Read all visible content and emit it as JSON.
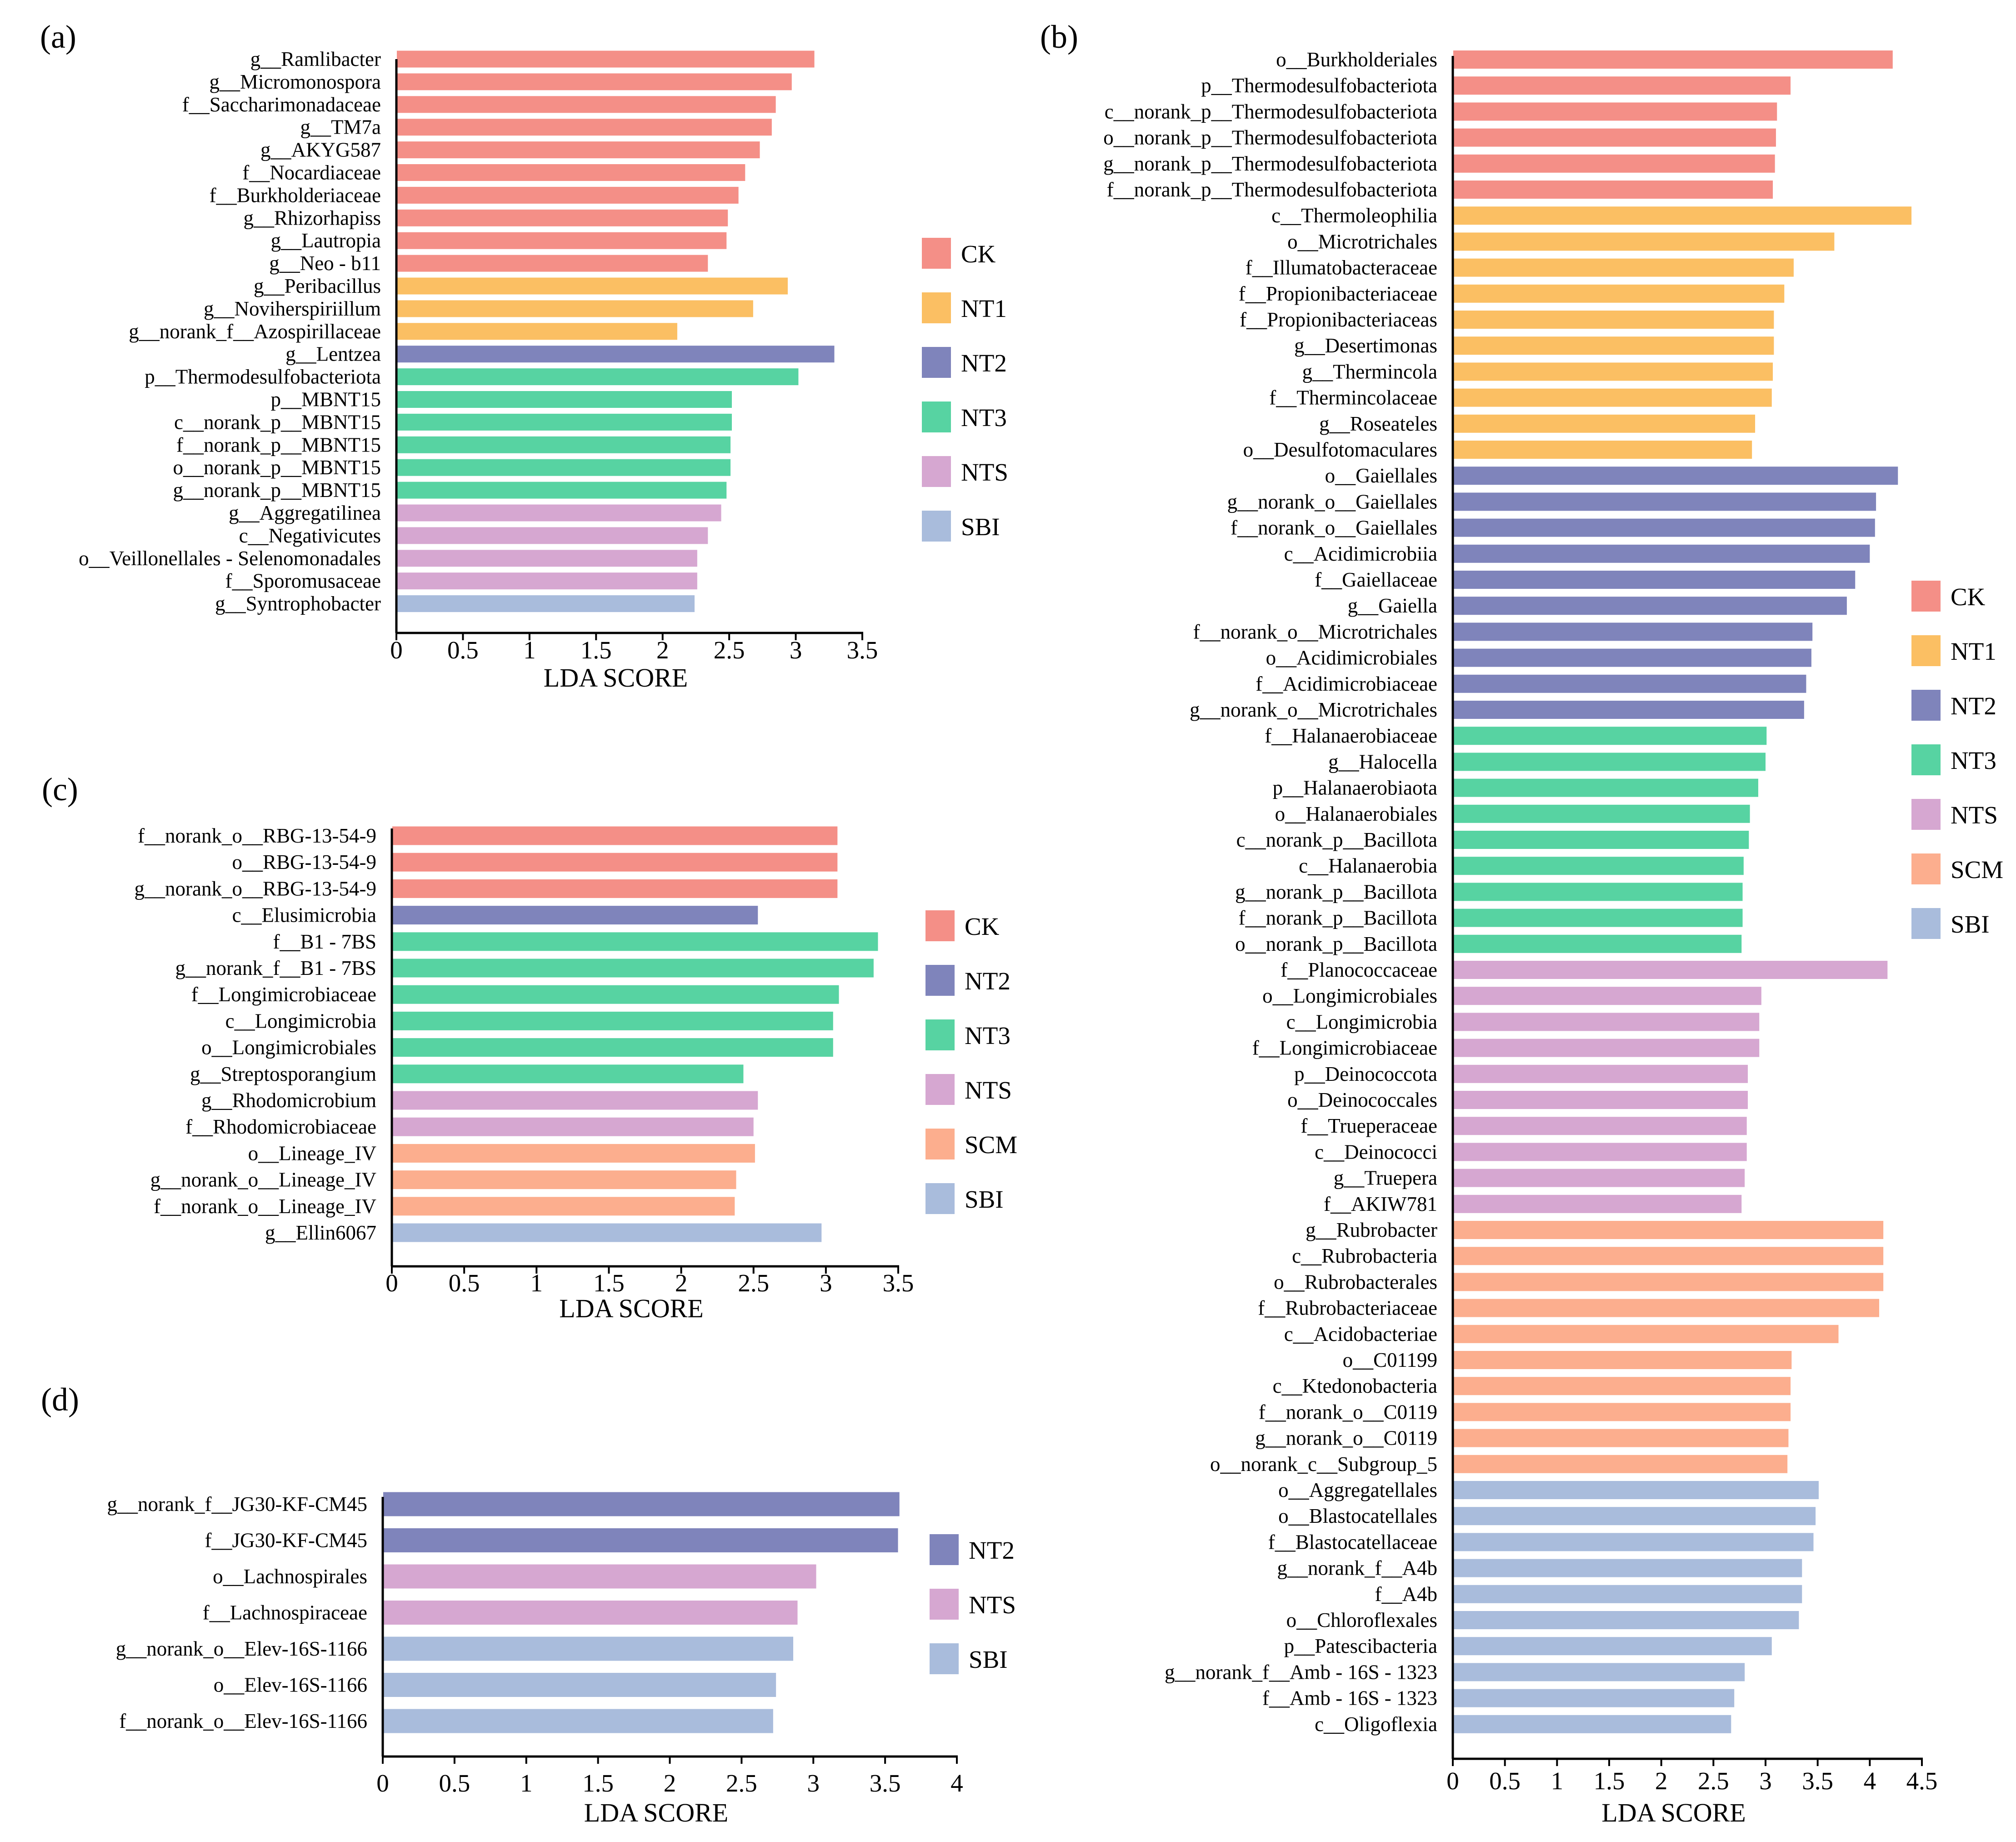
{
  "chart_data": [
    {
      "panel": "(a)",
      "type": "bar",
      "orientation": "horizontal",
      "xlabel": "LDA SCORE",
      "xlim": [
        0,
        3.5
      ],
      "xticks": [
        0,
        0.5,
        1,
        1.5,
        2,
        2.5,
        3,
        3.5
      ],
      "xtick_labels": [
        "0",
        "0.5",
        "1",
        "1.5",
        "2",
        "2.5",
        "3",
        "3.5"
      ],
      "legend": [
        "CK",
        "NT1",
        "NT2",
        "NT3",
        "NTS",
        "SBI"
      ],
      "categories": [
        "g__Ramlibacter",
        "g__Micromonospora",
        "f__Saccharimonadaceae",
        "g__TM7a",
        "g__AKYG587",
        "f__Nocardiaceae",
        "f__Burkholderiaceae",
        "g__Rhizorhapiss",
        "g__Lautropia",
        "g__Neo - b11",
        "g__Peribacillus",
        "g__Noviherspiriillum",
        "g__norank_f__Azospirillaceae",
        "g__Lentzea",
        "p__Thermodesulfobacteriota",
        "p__MBNT15",
        "c__norank_p__MBNT15",
        "f__norank_p__MBNT15",
        "o__norank_p__MBNT15",
        "g__norank_p__MBNT15",
        "g__Aggregatilinea",
        "c__Negativicutes",
        "o__Veillonellales - Selenomonadales",
        "f__Sporomusaceae",
        "g__Syntrophobacter"
      ],
      "values": [
        3.14,
        2.97,
        2.85,
        2.82,
        2.73,
        2.62,
        2.57,
        2.49,
        2.48,
        2.34,
        2.94,
        2.68,
        2.11,
        3.29,
        3.02,
        2.52,
        2.52,
        2.51,
        2.51,
        2.48,
        2.44,
        2.34,
        2.26,
        2.26,
        2.24
      ],
      "groups": [
        "CK",
        "CK",
        "CK",
        "CK",
        "CK",
        "CK",
        "CK",
        "CK",
        "CK",
        "CK",
        "NT1",
        "NT1",
        "NT1",
        "NT2",
        "NT3",
        "NT3",
        "NT3",
        "NT3",
        "NT3",
        "NT3",
        "NTS",
        "NTS",
        "NTS",
        "NTS",
        "SBI"
      ]
    },
    {
      "panel": "(b)",
      "type": "bar",
      "orientation": "horizontal",
      "xlabel": "LDA SCORE",
      "xlim": [
        0,
        4.5
      ],
      "xticks": [
        0,
        0.5,
        1,
        1.5,
        2,
        2.5,
        3,
        3.5,
        4,
        4.5
      ],
      "xtick_labels": [
        "0",
        "0.5",
        "1",
        "1.5",
        "2",
        "2.5",
        "3",
        "3.5",
        "4",
        "4.5"
      ],
      "legend": [
        "CK",
        "NT1",
        "NT2",
        "NT3",
        "NTS",
        "SCM",
        "SBI"
      ],
      "categories": [
        "o__Burkholderiales",
        "p__Thermodesulfobacteriota",
        "c__norank_p__Thermodesulfobacteriota",
        "o__norank_p__Thermodesulfobacteriota",
        "g__norank_p__Thermodesulfobacteriota",
        "f__norank_p__Thermodesulfobacteriota",
        "c__Thermoleophilia",
        "o__Microtrichales",
        "f__Illumatobacteraceae",
        "f__Propionibacteriaceae",
        "f__Propionibacteriaceas",
        "g__Desertimonas",
        "g__Thermincola",
        "f__Thermincolaceae",
        "g__Roseateles",
        "o__Desulfotomaculares",
        "o__Gaiellales",
        "g__norank_o__Gaiellales",
        "f__norank_o__Gaiellales",
        "c__Acidimicrobiia",
        "f__Gaiellaceae",
        "g__Gaiella",
        "f__norank_o__Microtrichales",
        "o__Acidimicrobiales",
        "f__Acidimicrobiaceae",
        "g__norank_o__Microtrichales",
        "f__Halanaerobiaceae",
        "g__Halocella",
        "p__Halanaerobiaota",
        "o__Halanaerobiales",
        "c__norank_p__Bacillota",
        "c__Halanaerobia",
        "g__norank_p__Bacillota",
        "f__norank_p__Bacillota",
        "o__norank_p__Bacillota",
        "f__Planococcaceae",
        "o__Longimicrobiales",
        "c__Longimicrobia",
        "f__Longimicrobiaceae",
        "p__Deinococcota",
        "o__Deinococcales",
        "f__Trueperaceae",
        "c__Deinococci",
        "g__Truepera",
        "f__AKIW781",
        "g__Rubrobacter",
        "c__Rubrobacteria",
        "o__Rubrobacterales",
        "f__Rubrobacteriaceae",
        "c__Acidobacteriae",
        "o__C01199",
        "c__Ktedonobacteria",
        "f__norank_o__C0119",
        "g__norank_o__C0119",
        "o__norank_c__Subgroup_5",
        "o__Aggregatellales",
        "o__Blastocatellales",
        "f__Blastocatellaceae",
        "g__norank_f__A4b",
        "f__A4b",
        "o__Chloroflexales",
        "p__Patescibacteria",
        "g__norank_f__Amb - 16S - 1323",
        "f__Amb - 16S - 1323",
        "c__Oligoflexia"
      ],
      "values": [
        4.22,
        3.24,
        3.11,
        3.1,
        3.09,
        3.07,
        4.4,
        3.66,
        3.27,
        3.18,
        3.08,
        3.08,
        3.07,
        3.06,
        2.9,
        2.87,
        4.27,
        4.06,
        4.05,
        4.0,
        3.86,
        3.78,
        3.45,
        3.44,
        3.39,
        3.37,
        3.01,
        3.0,
        2.93,
        2.85,
        2.84,
        2.79,
        2.78,
        2.78,
        2.77,
        4.17,
        2.96,
        2.94,
        2.94,
        2.83,
        2.83,
        2.82,
        2.82,
        2.8,
        2.77,
        4.13,
        4.13,
        4.13,
        4.09,
        3.7,
        3.25,
        3.24,
        3.24,
        3.22,
        3.21,
        3.51,
        3.48,
        3.46,
        3.35,
        3.35,
        3.32,
        3.06,
        2.8,
        2.7,
        2.67
      ],
      "groups": [
        "CK",
        "CK",
        "CK",
        "CK",
        "CK",
        "CK",
        "NT1",
        "NT1",
        "NT1",
        "NT1",
        "NT1",
        "NT1",
        "NT1",
        "NT1",
        "NT1",
        "NT1",
        "NT2",
        "NT2",
        "NT2",
        "NT2",
        "NT2",
        "NT2",
        "NT2",
        "NT2",
        "NT2",
        "NT2",
        "NT3",
        "NT3",
        "NT3",
        "NT3",
        "NT3",
        "NT3",
        "NT3",
        "NT3",
        "NT3",
        "NTS",
        "NTS",
        "NTS",
        "NTS",
        "NTS",
        "NTS",
        "NTS",
        "NTS",
        "NTS",
        "NTS",
        "SCM",
        "SCM",
        "SCM",
        "SCM",
        "SCM",
        "SCM",
        "SCM",
        "SCM",
        "SCM",
        "SCM",
        "SBI",
        "SBI",
        "SBI",
        "SBI",
        "SBI",
        "SBI",
        "SBI",
        "SBI",
        "SBI",
        "SBI"
      ]
    },
    {
      "panel": "(c)",
      "type": "bar",
      "orientation": "horizontal",
      "xlabel": "LDA SCORE",
      "xlim": [
        0,
        3.5
      ],
      "xticks": [
        0,
        0.5,
        1,
        1.5,
        2,
        2.5,
        3,
        3.5
      ],
      "xtick_labels": [
        "0",
        "0.5",
        "1",
        "1.5",
        "2",
        "2.5",
        "3",
        "3.5"
      ],
      "legend": [
        "CK",
        "NT2",
        "NT3",
        "NTS",
        "SCM",
        "SBI"
      ],
      "categories": [
        "f__norank_o__RBG-13-54-9",
        "o__RBG-13-54-9",
        "g__norank_o__RBG-13-54-9",
        "c__Elusimicrobia",
        "f__B1 - 7BS",
        "g__norank_f__B1 - 7BS",
        "f__Longimicrobiaceae",
        "c__Longimicrobia",
        "o__Longimicrobiales",
        "g__Streptosporangium",
        "g__Rhodomicrobium",
        "f__Rhodomicrobiaceae",
        "o__Lineage_IV",
        "g__norank_o__Lineage_IV",
        "f__norank_o__Lineage_IV",
        "g__Ellin6067"
      ],
      "values": [
        3.08,
        3.08,
        3.08,
        2.53,
        3.36,
        3.33,
        3.09,
        3.05,
        3.05,
        2.43,
        2.53,
        2.5,
        2.51,
        2.38,
        2.37,
        2.97
      ],
      "groups": [
        "CK",
        "CK",
        "CK",
        "NT2",
        "NT3",
        "NT3",
        "NT3",
        "NT3",
        "NT3",
        "NT3",
        "NTS",
        "NTS",
        "SCM",
        "SCM",
        "SCM",
        "SBI"
      ]
    },
    {
      "panel": "(d)",
      "type": "bar",
      "orientation": "horizontal",
      "xlabel": "LDA SCORE",
      "xlim": [
        0,
        4
      ],
      "xticks": [
        0,
        0.5,
        1,
        1.5,
        2,
        2.5,
        3,
        3.5,
        4
      ],
      "xtick_labels": [
        "0",
        "0.5",
        "1",
        "1.5",
        "2",
        "2.5",
        "3",
        "3.5",
        "4"
      ],
      "legend": [
        "NT2",
        "NTS",
        "SBI"
      ],
      "categories": [
        "g__norank_f__JG30-KF-CM45",
        "f__JG30-KF-CM45",
        "o__Lachnospirales",
        "f__Lachnospiraceae",
        "g__norank_o__Elev-16S-1166",
        "o__Elev-16S-1166",
        "f__norank_o__Elev-16S-1166"
      ],
      "values": [
        3.6,
        3.59,
        3.02,
        2.89,
        2.86,
        2.74,
        2.72
      ],
      "groups": [
        "NT2",
        "NT2",
        "NTS",
        "NTS",
        "SBI",
        "SBI",
        "SBI"
      ]
    }
  ],
  "colors": {
    "CK": "#f48f87",
    "NT1": "#fbbf63",
    "NT2": "#7f84bb",
    "NT3": "#57d3a2",
    "NTS": "#d6a7d1",
    "SCM": "#fcae8e",
    "SBI": "#a9bcdc"
  }
}
